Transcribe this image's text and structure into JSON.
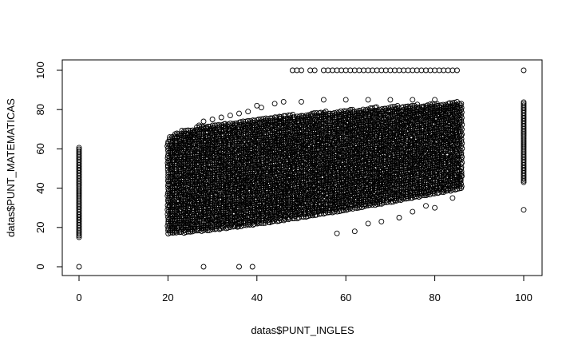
{
  "chart_data": {
    "type": "scatter",
    "title": "",
    "xlabel": "datas$PUNT_INGLES",
    "ylabel": "datas$PUNT_MATEMATICAS",
    "xlim": [
      -4,
      104
    ],
    "ylim": [
      -4,
      104
    ],
    "x_ticks": [
      0,
      20,
      40,
      60,
      80,
      100
    ],
    "y_ticks": [
      0,
      20,
      40,
      60,
      80,
      100
    ],
    "x_tick_labels": [
      "0",
      "20",
      "40",
      "60",
      "80",
      "100"
    ],
    "y_tick_labels": [
      "0",
      "20",
      "40",
      "60",
      "80",
      "100"
    ],
    "grid": false,
    "marker": "open-circle",
    "marker_color": "#000000",
    "clusters": [
      {
        "x": 0,
        "y_min": 15,
        "y_max": 61
      },
      {
        "x": 100,
        "y_min": 43,
        "y_max": 84
      }
    ],
    "band": {
      "x_min": 20,
      "x_max": 86,
      "y_low_at_xmin": 17,
      "y_high_at_xmin": 65,
      "y_low_at_xmax": 40,
      "y_high_at_xmax": 84
    },
    "points": [
      [
        0,
        0
      ],
      [
        28,
        0
      ],
      [
        36,
        0
      ],
      [
        39,
        0
      ],
      [
        100,
        29
      ],
      [
        100,
        100
      ],
      [
        48,
        100
      ],
      [
        49,
        100
      ],
      [
        50,
        100
      ],
      [
        52,
        100
      ],
      [
        53,
        100
      ],
      [
        55,
        100
      ],
      [
        56,
        100
      ],
      [
        57,
        100
      ],
      [
        58,
        100
      ],
      [
        59,
        100
      ],
      [
        60,
        100
      ],
      [
        61,
        100
      ],
      [
        62,
        100
      ],
      [
        63,
        100
      ],
      [
        64,
        100
      ],
      [
        65,
        100
      ],
      [
        66,
        100
      ],
      [
        67,
        100
      ],
      [
        68,
        100
      ],
      [
        69,
        100
      ],
      [
        70,
        100
      ],
      [
        71,
        100
      ],
      [
        72,
        100
      ],
      [
        73,
        100
      ],
      [
        74,
        100
      ],
      [
        75,
        100
      ],
      [
        76,
        100
      ],
      [
        77,
        100
      ],
      [
        78,
        100
      ],
      [
        79,
        100
      ],
      [
        80,
        100
      ],
      [
        81,
        100
      ],
      [
        82,
        100
      ],
      [
        83,
        100
      ],
      [
        84,
        100
      ],
      [
        85,
        100
      ],
      [
        40,
        82
      ],
      [
        41,
        81
      ],
      [
        44,
        83
      ],
      [
        46,
        84
      ],
      [
        50,
        84
      ],
      [
        55,
        85
      ],
      [
        60,
        85
      ],
      [
        65,
        85
      ],
      [
        70,
        85
      ],
      [
        75,
        85
      ],
      [
        80,
        85
      ],
      [
        85,
        84
      ],
      [
        86,
        46
      ],
      [
        84,
        35
      ],
      [
        82,
        39
      ],
      [
        80,
        30
      ],
      [
        78,
        31
      ],
      [
        75,
        28
      ],
      [
        72,
        25
      ],
      [
        68,
        23
      ],
      [
        65,
        22
      ],
      [
        62,
        18
      ],
      [
        58,
        17
      ],
      [
        22,
        60
      ],
      [
        23,
        63
      ],
      [
        24,
        64
      ],
      [
        25,
        66
      ],
      [
        26,
        68
      ],
      [
        27,
        72
      ],
      [
        28,
        74
      ],
      [
        30,
        75
      ],
      [
        32,
        76
      ],
      [
        34,
        77
      ],
      [
        36,
        78
      ],
      [
        38,
        79
      ]
    ]
  }
}
